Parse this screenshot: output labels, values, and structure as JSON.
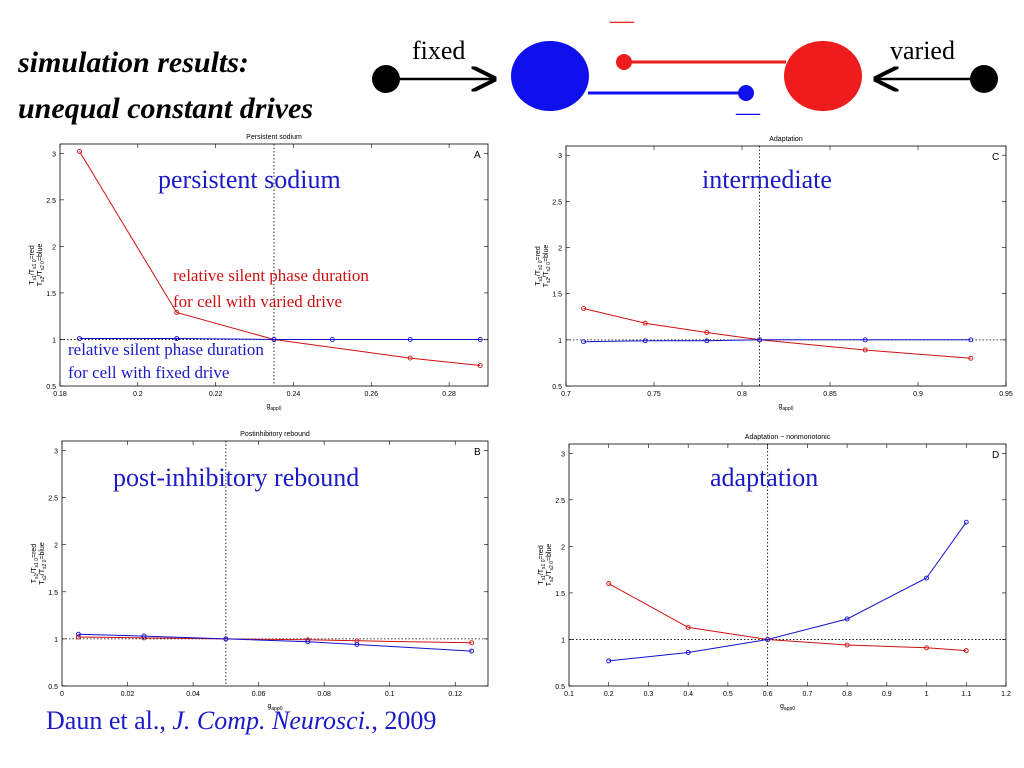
{
  "title": {
    "line1": "simulation results:",
    "line2": "unequal constant drives"
  },
  "diagram": {
    "fixed_label": "fixed",
    "varied_label": "varied",
    "red_bar": "—",
    "blue_bar": "—",
    "colors": {
      "red": "#ee1c1c",
      "blue": "#1010ee"
    }
  },
  "citation": {
    "authors": "Daun et al., ",
    "journal": "J. Comp. Neurosci.",
    "year": ", 2009"
  },
  "annotations": {
    "red_line1": "relative silent phase duration",
    "red_line2": "for cell with varied drive",
    "blue_line1": "relative silent phase duration",
    "blue_line2": "for cell with fixed drive"
  },
  "panels": [
    {
      "id": "A",
      "name": "persistent sodium"
    },
    {
      "id": "C",
      "name": "intermediate"
    },
    {
      "id": "B",
      "name": "post-inhibitory rebound"
    },
    {
      "id": "D",
      "name": "adaptation"
    }
  ],
  "chart_data": [
    {
      "type": "line",
      "title": "Persistent sodium",
      "letter": "A",
      "xlabel": "g_app0",
      "ylabel": "T_s1/T_s1_0 = red ; T_s2/T_s2_0 = blue",
      "xlim": [
        0.18,
        0.29
      ],
      "ylim": [
        0.5,
        3.1
      ],
      "xticks": [
        0.18,
        0.2,
        0.22,
        0.24,
        0.26,
        0.28
      ],
      "xtick_labels": [
        "0.18",
        "0.2",
        "0.22",
        "0.24",
        "0.26",
        "0.28"
      ],
      "yticks": [
        0.5,
        1,
        1.5,
        2,
        2.5,
        3
      ],
      "ytick_labels": [
        "0.5",
        "1",
        "1.5",
        "2",
        "2.5",
        "3"
      ],
      "ref_x": 0.235,
      "ref_y": 1,
      "series": [
        {
          "color": "#d01010",
          "x": [
            0.185,
            0.21,
            0.235,
            0.27,
            0.288
          ],
          "y": [
            3.02,
            1.29,
            1.0,
            0.8,
            0.72
          ]
        },
        {
          "color": "#1010d0",
          "x": [
            0.185,
            0.21,
            0.235,
            0.25,
            0.27,
            0.288
          ],
          "y": [
            1.01,
            1.01,
            1.0,
            1.0,
            1.0,
            1.0
          ]
        }
      ]
    },
    {
      "type": "line",
      "title": "Adaptation",
      "letter": "C",
      "xlabel": "g_app0",
      "ylabel": "T_s1/T_s1_0 = red ; T_s2/T_s2_0 = blue",
      "xlim": [
        0.7,
        0.95
      ],
      "ylim": [
        0.5,
        3.1
      ],
      "xticks": [
        0.7,
        0.75,
        0.8,
        0.85,
        0.9,
        0.95
      ],
      "xtick_labels": [
        "0.7",
        "0.75",
        "0.8",
        "0.85",
        "0.9",
        "0.95"
      ],
      "yticks": [
        0.5,
        1,
        1.5,
        2,
        2.5,
        3
      ],
      "ytick_labels": [
        "0.5",
        "1",
        "1.5",
        "2",
        "2.5",
        "3"
      ],
      "ref_x": 0.81,
      "ref_y": 1,
      "series": [
        {
          "color": "#d01010",
          "x": [
            0.71,
            0.745,
            0.78,
            0.81,
            0.87,
            0.93
          ],
          "y": [
            1.34,
            1.18,
            1.08,
            1.0,
            0.89,
            0.8
          ]
        },
        {
          "color": "#1010d0",
          "x": [
            0.71,
            0.745,
            0.78,
            0.81,
            0.87,
            0.93
          ],
          "y": [
            0.98,
            0.99,
            0.99,
            1.0,
            1.0,
            1.0
          ]
        }
      ]
    },
    {
      "type": "line",
      "title": "Postinhibitory rebound",
      "letter": "B",
      "xlabel": "g_app0",
      "ylabel": "T_s1/T_s1_0 = red ; T_s2/T_s2_0 = blue",
      "xlim": [
        0,
        0.13
      ],
      "ylim": [
        0.5,
        3.1
      ],
      "xticks": [
        0,
        0.02,
        0.04,
        0.06,
        0.08,
        0.1,
        0.12
      ],
      "xtick_labels": [
        "0",
        "0.02",
        "0.04",
        "0.06",
        "0.08",
        "0.1",
        "0.12"
      ],
      "yticks": [
        0.5,
        1,
        1.5,
        2,
        2.5,
        3
      ],
      "ytick_labels": [
        "0.5",
        "1",
        "1.5",
        "2",
        "2.5",
        "3"
      ],
      "ref_x": 0.05,
      "ref_y": 1,
      "series": [
        {
          "color": "#d01010",
          "x": [
            0.005,
            0.025,
            0.05,
            0.075,
            0.09,
            0.125
          ],
          "y": [
            1.02,
            1.01,
            1.0,
            0.99,
            0.98,
            0.96
          ]
        },
        {
          "color": "#1010d0",
          "x": [
            0.005,
            0.025,
            0.05,
            0.075,
            0.09,
            0.125
          ],
          "y": [
            1.05,
            1.03,
            1.0,
            0.97,
            0.94,
            0.87
          ]
        }
      ]
    },
    {
      "type": "line",
      "title": "Adaptation − nonmonotonic",
      "letter": "D",
      "xlabel": "g_app0",
      "ylabel": "T_s1/T_s1_0 = red ; T_s2/T_s2_0 = blue",
      "xlim": [
        0.1,
        1.2
      ],
      "ylim": [
        0.5,
        3.1
      ],
      "xticks": [
        0.1,
        0.2,
        0.3,
        0.4,
        0.5,
        0.6,
        0.7,
        0.8,
        0.9,
        1,
        1.1,
        1.2
      ],
      "xtick_labels": [
        "0.1",
        "0.2",
        "0.3",
        "0.4",
        "0.5",
        "0.6",
        "0.7",
        "0.8",
        "0.9",
        "1",
        "1.1",
        "1.2"
      ],
      "yticks": [
        0.5,
        1,
        1.5,
        2,
        2.5,
        3
      ],
      "ytick_labels": [
        "0.5",
        "1",
        "1.5",
        "2",
        "2.5",
        "3"
      ],
      "ref_x": 0.6,
      "ref_y": 1,
      "series": [
        {
          "color": "#d01010",
          "x": [
            0.2,
            0.4,
            0.6,
            0.8,
            1.0,
            1.1
          ],
          "y": [
            1.6,
            1.13,
            1.0,
            0.94,
            0.91,
            0.88
          ]
        },
        {
          "color": "#1010d0",
          "x": [
            0.2,
            0.4,
            0.6,
            0.8,
            1.0,
            1.1
          ],
          "y": [
            0.77,
            0.86,
            1.0,
            1.22,
            1.66,
            2.26
          ]
        }
      ]
    }
  ]
}
